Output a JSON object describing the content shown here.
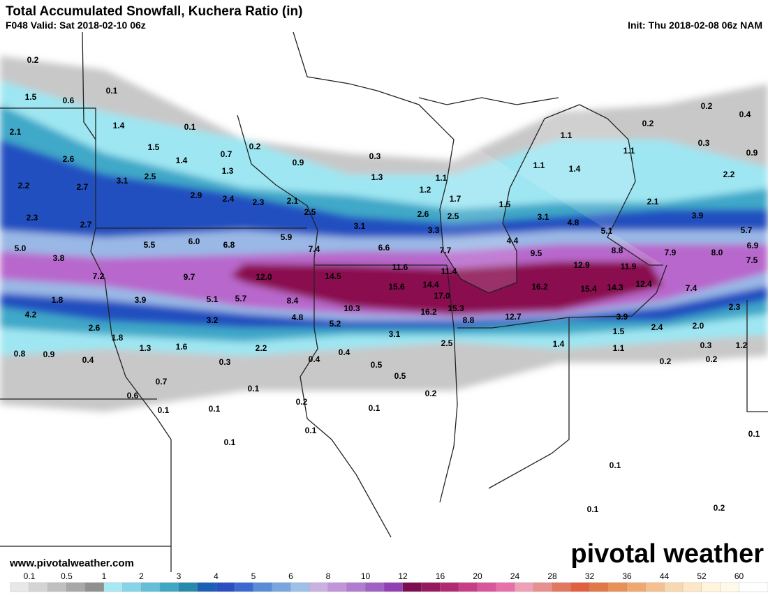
{
  "header": {
    "title": "Total Accumulated Snowfall, Kuchera Ratio (in)",
    "valid": "F048 Valid: Sat 2018-02-10 06z",
    "init": "Init: Thu 2018-02-08 06z NAM"
  },
  "points": [
    "0.2",
    "1.5",
    "0.6",
    "0.1",
    "2.1",
    "1.4",
    "0.1",
    "1.5",
    "2.6",
    "0.7",
    "0.2",
    "1.4",
    "0.3",
    "0.9",
    "2.2",
    "2.7",
    "3.1",
    "2.5",
    "1.3",
    "1.3",
    "1.1",
    "1.2",
    "2.9",
    "2.4",
    "2.3",
    "2.1",
    "1.7",
    "2.3",
    "2.7",
    "2.5",
    "3.1",
    "2.6",
    "2.5",
    "3.3",
    "5.0",
    "3.8",
    "5.5",
    "6.0",
    "6.8",
    "5.9",
    "7.4",
    "6.6",
    "7.7",
    "7.2",
    "9.7",
    "12.0",
    "14.5",
    "11.6",
    "11.4",
    "15.6",
    "14.4",
    "17.0",
    "1.8",
    "3.9",
    "5.1",
    "5.7",
    "8.4",
    "10.3",
    "15.3",
    "16.2",
    "4.2",
    "4.8",
    "3.2",
    "8.8",
    "5.2",
    "2.6",
    "1.8",
    "3.1",
    "1.3",
    "1.6",
    "2.2",
    "2.5",
    "0.8",
    "0.9",
    "0.4",
    "0.3",
    "0.4",
    "0.4",
    "0.5",
    "0.5",
    "0.7",
    "0.1",
    "0.2",
    "0.6",
    "0.2",
    "0.1",
    "0.1",
    "0.1",
    "0.1",
    "0.1",
    "1.1",
    "1.1",
    "1.4",
    "1.1",
    "0.2",
    "0.2",
    "0.4",
    "0.3",
    "0.9",
    "2.2",
    "2.1",
    "3.9",
    "1.5",
    "3.1",
    "4.8",
    "5.1",
    "5.7",
    "6.9",
    "4.4",
    "8.8",
    "7.9",
    "8.0",
    "9.5",
    "7.5",
    "12.9",
    "11.9",
    "16.2",
    "15.4",
    "14.3",
    "12.4",
    "7.4",
    "2.3",
    "12.7",
    "3.9",
    "2.4",
    "2.0",
    "1.5",
    "1.4",
    "1.1",
    "0.3",
    "1.2",
    "0.2",
    "0.2",
    "0.1",
    "0.1",
    "0.2",
    "0.1"
  ],
  "url": "www.pivotalweather.com",
  "brand": "pivotal weather",
  "legend": {
    "labels": [
      "0.1",
      "0.5",
      "1",
      "2",
      "3",
      "4",
      "5",
      "6",
      "8",
      "10",
      "12",
      "16",
      "20",
      "24",
      "28",
      "32",
      "36",
      "44",
      "52",
      "60"
    ],
    "colors": [
      "#e8e8e8",
      "#d4d4d4",
      "#c0c0c0",
      "#a8a8a8",
      "#909090",
      "#a8e8f4",
      "#86d4e8",
      "#63bfd8",
      "#40a6c4",
      "#268aaa",
      "#1a5fb4",
      "#2a4fc0",
      "#3a6ad0",
      "#5a8cd8",
      "#7aa6e0",
      "#9cc0e8",
      "#c8b0e0",
      "#c096d8",
      "#b07cd0",
      "#a060c4",
      "#9040b4",
      "#7a0e50",
      "#961a5e",
      "#b02a72",
      "#c83e86",
      "#d8569a",
      "#e870aa",
      "#eea0b8",
      "#e89090",
      "#e07860",
      "#e06040",
      "#e07848",
      "#e89058",
      "#f0a870",
      "#f4c090",
      "#f8d8b0",
      "#fce8c8",
      "#fff4dc",
      "#fffae8",
      "#ffffff"
    ]
  }
}
